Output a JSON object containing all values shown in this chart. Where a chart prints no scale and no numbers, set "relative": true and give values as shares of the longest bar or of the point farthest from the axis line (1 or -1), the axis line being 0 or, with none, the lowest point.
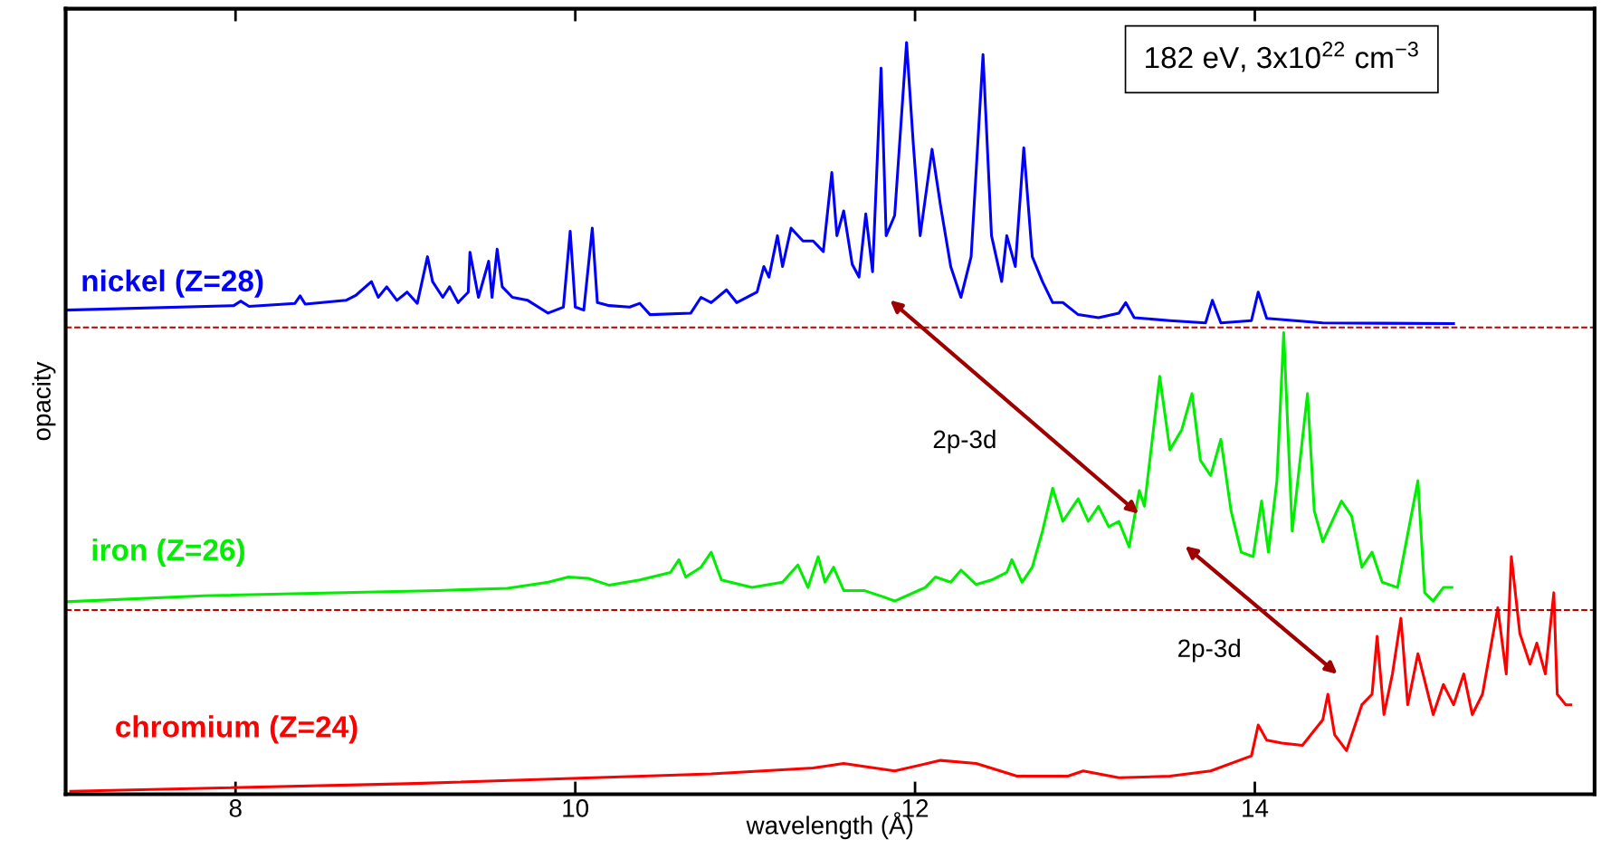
{
  "chart_data": {
    "type": "line",
    "relative": true,
    "xlabel": "wavelength (Å)",
    "ylabel": "opacity",
    "xlim": [
      7,
      16
    ],
    "xticks": [
      8,
      10,
      12,
      14
    ],
    "tick_labels": "x",
    "grid": false,
    "legend": false,
    "marker": "none",
    "line_style": "solid",
    "series": [
      {
        "name": "nickel (Z=28)",
        "color": "#0000ff",
        "x": [
          7.0,
          7.99,
          8.03,
          8.08,
          8.35,
          8.38,
          8.41,
          8.65,
          8.71,
          8.8,
          8.84,
          8.89,
          8.95,
          9.01,
          9.07,
          9.13,
          9.16,
          9.22,
          9.26,
          9.31,
          9.37,
          9.38,
          9.43,
          9.49,
          9.51,
          9.54,
          9.57,
          9.63,
          9.72,
          9.84,
          9.93,
          9.97,
          10.0,
          10.05,
          10.1,
          10.13,
          10.2,
          10.32,
          10.38,
          10.44,
          10.68,
          10.74,
          10.8,
          10.89,
          10.95,
          11.07,
          11.11,
          11.14,
          11.19,
          11.22,
          11.27,
          11.34,
          11.4,
          11.46,
          11.51,
          11.54,
          11.58,
          11.63,
          11.67,
          11.71,
          11.75,
          11.8,
          11.83,
          11.88,
          11.95,
          11.99,
          12.03,
          12.1,
          12.15,
          12.21,
          12.27,
          12.33,
          12.4,
          12.45,
          12.51,
          12.54,
          12.59,
          12.64,
          12.69,
          12.75,
          12.81,
          12.87,
          12.96,
          13.08,
          13.2,
          13.24,
          13.29,
          13.5,
          13.71,
          13.75,
          13.8,
          13.98,
          14.02,
          14.07,
          14.4,
          15.17
        ],
        "values": [
          0.644,
          0.65,
          0.656,
          0.649,
          0.653,
          0.663,
          0.652,
          0.657,
          0.664,
          0.682,
          0.661,
          0.675,
          0.657,
          0.668,
          0.653,
          0.715,
          0.682,
          0.661,
          0.675,
          0.654,
          0.668,
          0.721,
          0.661,
          0.709,
          0.661,
          0.725,
          0.675,
          0.661,
          0.657,
          0.64,
          0.648,
          0.749,
          0.648,
          0.644,
          0.753,
          0.654,
          0.65,
          0.648,
          0.653,
          0.638,
          0.64,
          0.661,
          0.654,
          0.671,
          0.654,
          0.668,
          0.702,
          0.688,
          0.743,
          0.702,
          0.753,
          0.736,
          0.736,
          0.722,
          0.827,
          0.743,
          0.776,
          0.705,
          0.688,
          0.772,
          0.695,
          0.966,
          0.743,
          0.77,
          1.0,
          0.864,
          0.743,
          0.858,
          0.783,
          0.702,
          0.661,
          0.715,
          0.984,
          0.743,
          0.682,
          0.743,
          0.702,
          0.86,
          0.715,
          0.682,
          0.654,
          0.654,
          0.638,
          0.634,
          0.64,
          0.654,
          0.634,
          0.63,
          0.627,
          0.657,
          0.627,
          0.63,
          0.668,
          0.633,
          0.627,
          0.626
        ]
      },
      {
        "name": "iron (Z=26)",
        "color": "#00ee00",
        "x": [
          7.0,
          7.81,
          9.19,
          9.6,
          9.84,
          9.96,
          10.08,
          10.2,
          10.38,
          10.56,
          10.61,
          10.65,
          10.74,
          10.8,
          10.86,
          11.04,
          11.22,
          11.31,
          11.37,
          11.43,
          11.47,
          11.52,
          11.58,
          11.7,
          11.82,
          11.88,
          12.06,
          12.12,
          12.21,
          12.27,
          12.36,
          12.45,
          12.54,
          12.57,
          12.63,
          12.69,
          12.75,
          12.81,
          12.87,
          12.96,
          13.02,
          13.08,
          13.14,
          13.2,
          13.26,
          13.32,
          13.35,
          13.44,
          13.5,
          13.57,
          13.63,
          13.68,
          13.74,
          13.8,
          13.86,
          13.92,
          13.99,
          14.04,
          14.08,
          14.13,
          14.17,
          14.22,
          14.31,
          14.35,
          14.4,
          14.51,
          14.57,
          14.63,
          14.69,
          14.75,
          14.84,
          14.96,
          15.0,
          15.05,
          15.11,
          15.16
        ],
        "values": [
          0.256,
          0.264,
          0.271,
          0.274,
          0.282,
          0.289,
          0.287,
          0.278,
          0.285,
          0.295,
          0.312,
          0.289,
          0.302,
          0.322,
          0.285,
          0.275,
          0.282,
          0.305,
          0.275,
          0.316,
          0.282,
          0.302,
          0.271,
          0.271,
          0.262,
          0.257,
          0.275,
          0.289,
          0.282,
          0.298,
          0.279,
          0.285,
          0.295,
          0.312,
          0.282,
          0.302,
          0.35,
          0.407,
          0.363,
          0.393,
          0.363,
          0.383,
          0.356,
          0.363,
          0.329,
          0.404,
          0.383,
          0.556,
          0.458,
          0.485,
          0.533,
          0.444,
          0.424,
          0.472,
          0.377,
          0.322,
          0.316,
          0.39,
          0.322,
          0.417,
          0.614,
          0.35,
          0.533,
          0.377,
          0.336,
          0.39,
          0.37,
          0.302,
          0.322,
          0.282,
          0.275,
          0.417,
          0.268,
          0.257,
          0.275,
          0.275
        ]
      },
      {
        "name": "chromium (Z=24)",
        "color": "#ff0000",
        "x": [
          7.03,
          9.01,
          10.8,
          11.4,
          11.58,
          11.88,
          12.15,
          12.36,
          12.6,
          12.9,
          12.99,
          13.2,
          13.5,
          13.74,
          13.98,
          14.02,
          14.07,
          14.16,
          14.28,
          14.4,
          14.43,
          14.47,
          14.54,
          14.63,
          14.69,
          14.72,
          14.76,
          14.81,
          14.86,
          14.9,
          14.96,
          15.05,
          15.11,
          15.17,
          15.23,
          15.28,
          15.34,
          15.43,
          15.48,
          15.51,
          15.56,
          15.62,
          15.66,
          15.71,
          15.76,
          15.78,
          15.83,
          15.86
        ],
        "values": [
          0.004,
          0.014,
          0.027,
          0.035,
          0.041,
          0.031,
          0.045,
          0.041,
          0.024,
          0.024,
          0.031,
          0.022,
          0.024,
          0.031,
          0.051,
          0.092,
          0.072,
          0.068,
          0.065,
          0.099,
          0.133,
          0.079,
          0.058,
          0.119,
          0.133,
          0.21,
          0.106,
          0.16,
          0.234,
          0.119,
          0.187,
          0.106,
          0.146,
          0.119,
          0.16,
          0.106,
          0.133,
          0.248,
          0.16,
          0.316,
          0.214,
          0.173,
          0.201,
          0.16,
          0.268,
          0.133,
          0.119,
          0.119
        ]
      }
    ],
    "ref_lines": [
      {
        "axis": "y",
        "value": 0.621,
        "color": "#c00000",
        "line_style": "dashed"
      },
      {
        "axis": "y",
        "value": 0.245,
        "color": "#c00000",
        "line_style": "dashed"
      }
    ],
    "annotations": [
      "182 eV, 3x10$^{22}$ cm$^{−3}$",
      "2p-3d",
      "2p-3d"
    ]
  }
}
